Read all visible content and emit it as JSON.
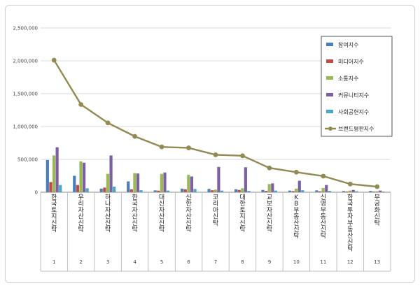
{
  "chart_data": {
    "type": "bar",
    "title": "",
    "xlabel": "",
    "ylabel": "",
    "ylim": [
      0,
      2500000
    ],
    "yticks": [
      "0",
      "500,000",
      "1,000,000",
      "1,500,000",
      "2,000,000",
      "2,500,000"
    ],
    "yticks_values": [
      0,
      500000,
      1000000,
      1500000,
      2000000,
      2500000
    ],
    "grid": true,
    "legend_position": "right",
    "indices": [
      "1",
      "2",
      "3",
      "4",
      "5",
      "6",
      "7",
      "8",
      "9",
      "10",
      "11",
      "12",
      "13"
    ],
    "categories": [
      "한국토지신탁",
      "우리자산신탁",
      "하나자산신탁",
      "한국자산신탁",
      "대신자산신탁",
      "신한자산신탁",
      "코리아신탁",
      "대한토지신탁",
      "교보자산신탁",
      "KB부동산신탁",
      "신영부동산신탁",
      "한국투자부동산신탁",
      "무궁화신탁"
    ],
    "series": [
      {
        "name": "참여지수",
        "color": "#4a7ebb",
        "kind": "bar",
        "values": [
          490000,
          250000,
          55000,
          165000,
          28000,
          55000,
          50000,
          45000,
          35000,
          25000,
          28000,
          18000,
          20000
        ]
      },
      {
        "name": "미디어지수",
        "color": "#be4b48",
        "kind": "bar",
        "values": [
          155000,
          110000,
          70000,
          45000,
          25000,
          45000,
          30000,
          35000,
          20000,
          18000,
          15000,
          12000,
          10000
        ]
      },
      {
        "name": "소통지수",
        "color": "#98b954",
        "kind": "bar",
        "values": [
          560000,
          470000,
          280000,
          290000,
          280000,
          265000,
          40000,
          60000,
          125000,
          55000,
          65000,
          25000,
          15000
        ]
      },
      {
        "name": "커뮤니티지수",
        "color": "#7d60a0",
        "kind": "bar",
        "values": [
          685000,
          450000,
          560000,
          285000,
          300000,
          240000,
          385000,
          380000,
          135000,
          175000,
          110000,
          35000,
          25000
        ]
      },
      {
        "name": "사회공헌지수",
        "color": "#46aac5",
        "kind": "bar",
        "values": [
          110000,
          60000,
          85000,
          30000,
          25000,
          50000,
          25000,
          20000,
          25000,
          30000,
          20000,
          15000,
          10000
        ]
      },
      {
        "name": "브랜드평판지수",
        "color": "#938953",
        "kind": "line",
        "values": [
          2010000,
          1335000,
          1055000,
          850000,
          690000,
          675000,
          570000,
          555000,
          370000,
          305000,
          245000,
          125000,
          85000
        ]
      }
    ]
  }
}
